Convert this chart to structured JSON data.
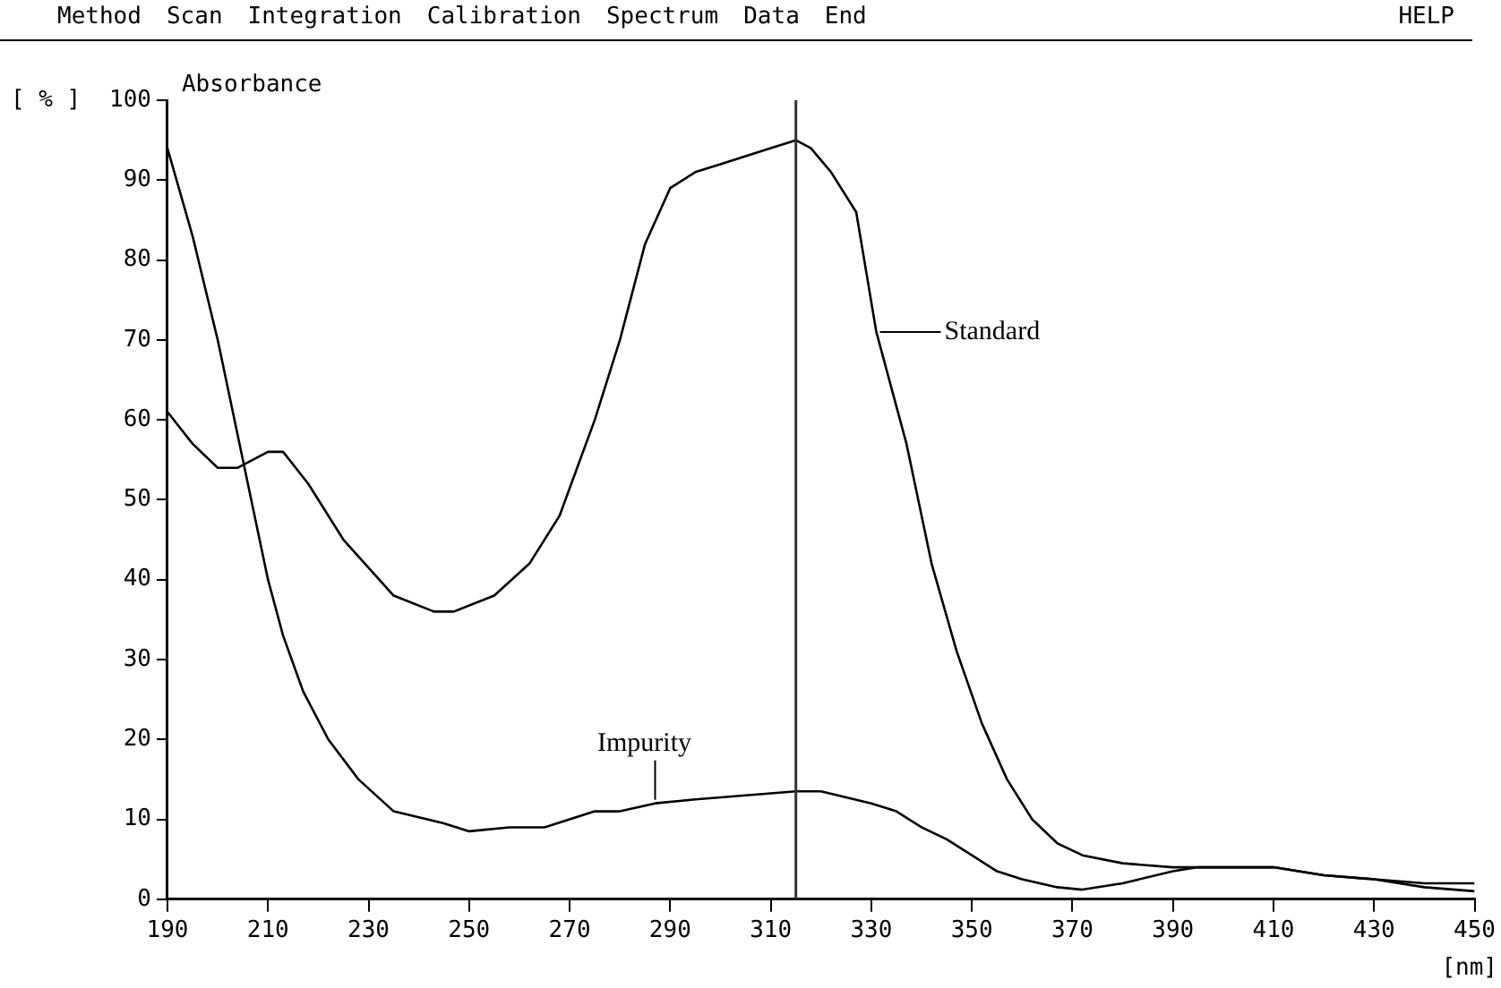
{
  "chart_data": {
    "type": "line",
    "title": "Absorbance",
    "ylabel": "[ % ]",
    "xlabel": "[nm]",
    "xlim": [
      190,
      450
    ],
    "xticks": [
      190,
      210,
      230,
      250,
      270,
      290,
      310,
      330,
      350,
      370,
      390,
      410,
      430,
      450
    ],
    "ylim": [
      0,
      100
    ],
    "yticks": [
      0,
      10,
      20,
      30,
      40,
      50,
      60,
      70,
      80,
      90,
      100
    ],
    "grid": false,
    "legend": false,
    "marker": "none",
    "line_style": "solid",
    "series": [
      {
        "color": "#000000",
        "x": [
          190,
          195,
          200,
          204,
          210,
          213,
          218,
          225,
          235,
          243,
          247,
          255,
          262,
          268,
          275,
          280,
          285,
          290,
          295,
          300,
          305,
          310,
          315,
          318,
          322,
          327,
          331,
          337,
          342,
          347,
          352,
          357,
          362,
          367,
          372,
          380,
          390,
          400,
          410,
          420,
          430,
          440,
          450
        ],
        "values": [
          61,
          57,
          54,
          54,
          56,
          56,
          52,
          45,
          38,
          36,
          36,
          38,
          42,
          48,
          60,
          70,
          82,
          89,
          91,
          92,
          93,
          94,
          95,
          94,
          91,
          86,
          71,
          57,
          42,
          31,
          22,
          15,
          10,
          7,
          5.5,
          4.5,
          4,
          4,
          4,
          3,
          2.5,
          2,
          2
        ]
      },
      {
        "color": "#000000",
        "x": [
          190,
          195,
          200,
          205,
          210,
          213,
          217,
          222,
          228,
          235,
          245,
          250,
          258,
          265,
          275,
          280,
          287,
          295,
          305,
          315,
          320,
          330,
          335,
          340,
          345,
          350,
          355,
          360,
          367,
          372,
          380,
          390,
          395,
          410,
          420,
          430,
          440,
          450
        ],
        "values": [
          94,
          83,
          70,
          55,
          40,
          33,
          26,
          20,
          15,
          11,
          9.5,
          8.5,
          9,
          9,
          11,
          11,
          12,
          12.5,
          13,
          13.5,
          13.5,
          12,
          11,
          9,
          7.5,
          5.5,
          3.5,
          2.5,
          1.5,
          1.2,
          2,
          3.5,
          4,
          4,
          3,
          2.5,
          1.5,
          1
        ]
      }
    ],
    "ref_lines": [
      {
        "axis": "x",
        "value": 315,
        "color": "#333333"
      }
    ],
    "annotations": [
      {
        "text": "Standard",
        "x": 331,
        "y": 71
      },
      {
        "text": "Impurity",
        "x": 287,
        "y": 12
      },
      "Method",
      "Scan",
      "Integration",
      "Calibration",
      "Spectrum",
      "Data",
      "End",
      "HELP"
    ]
  }
}
